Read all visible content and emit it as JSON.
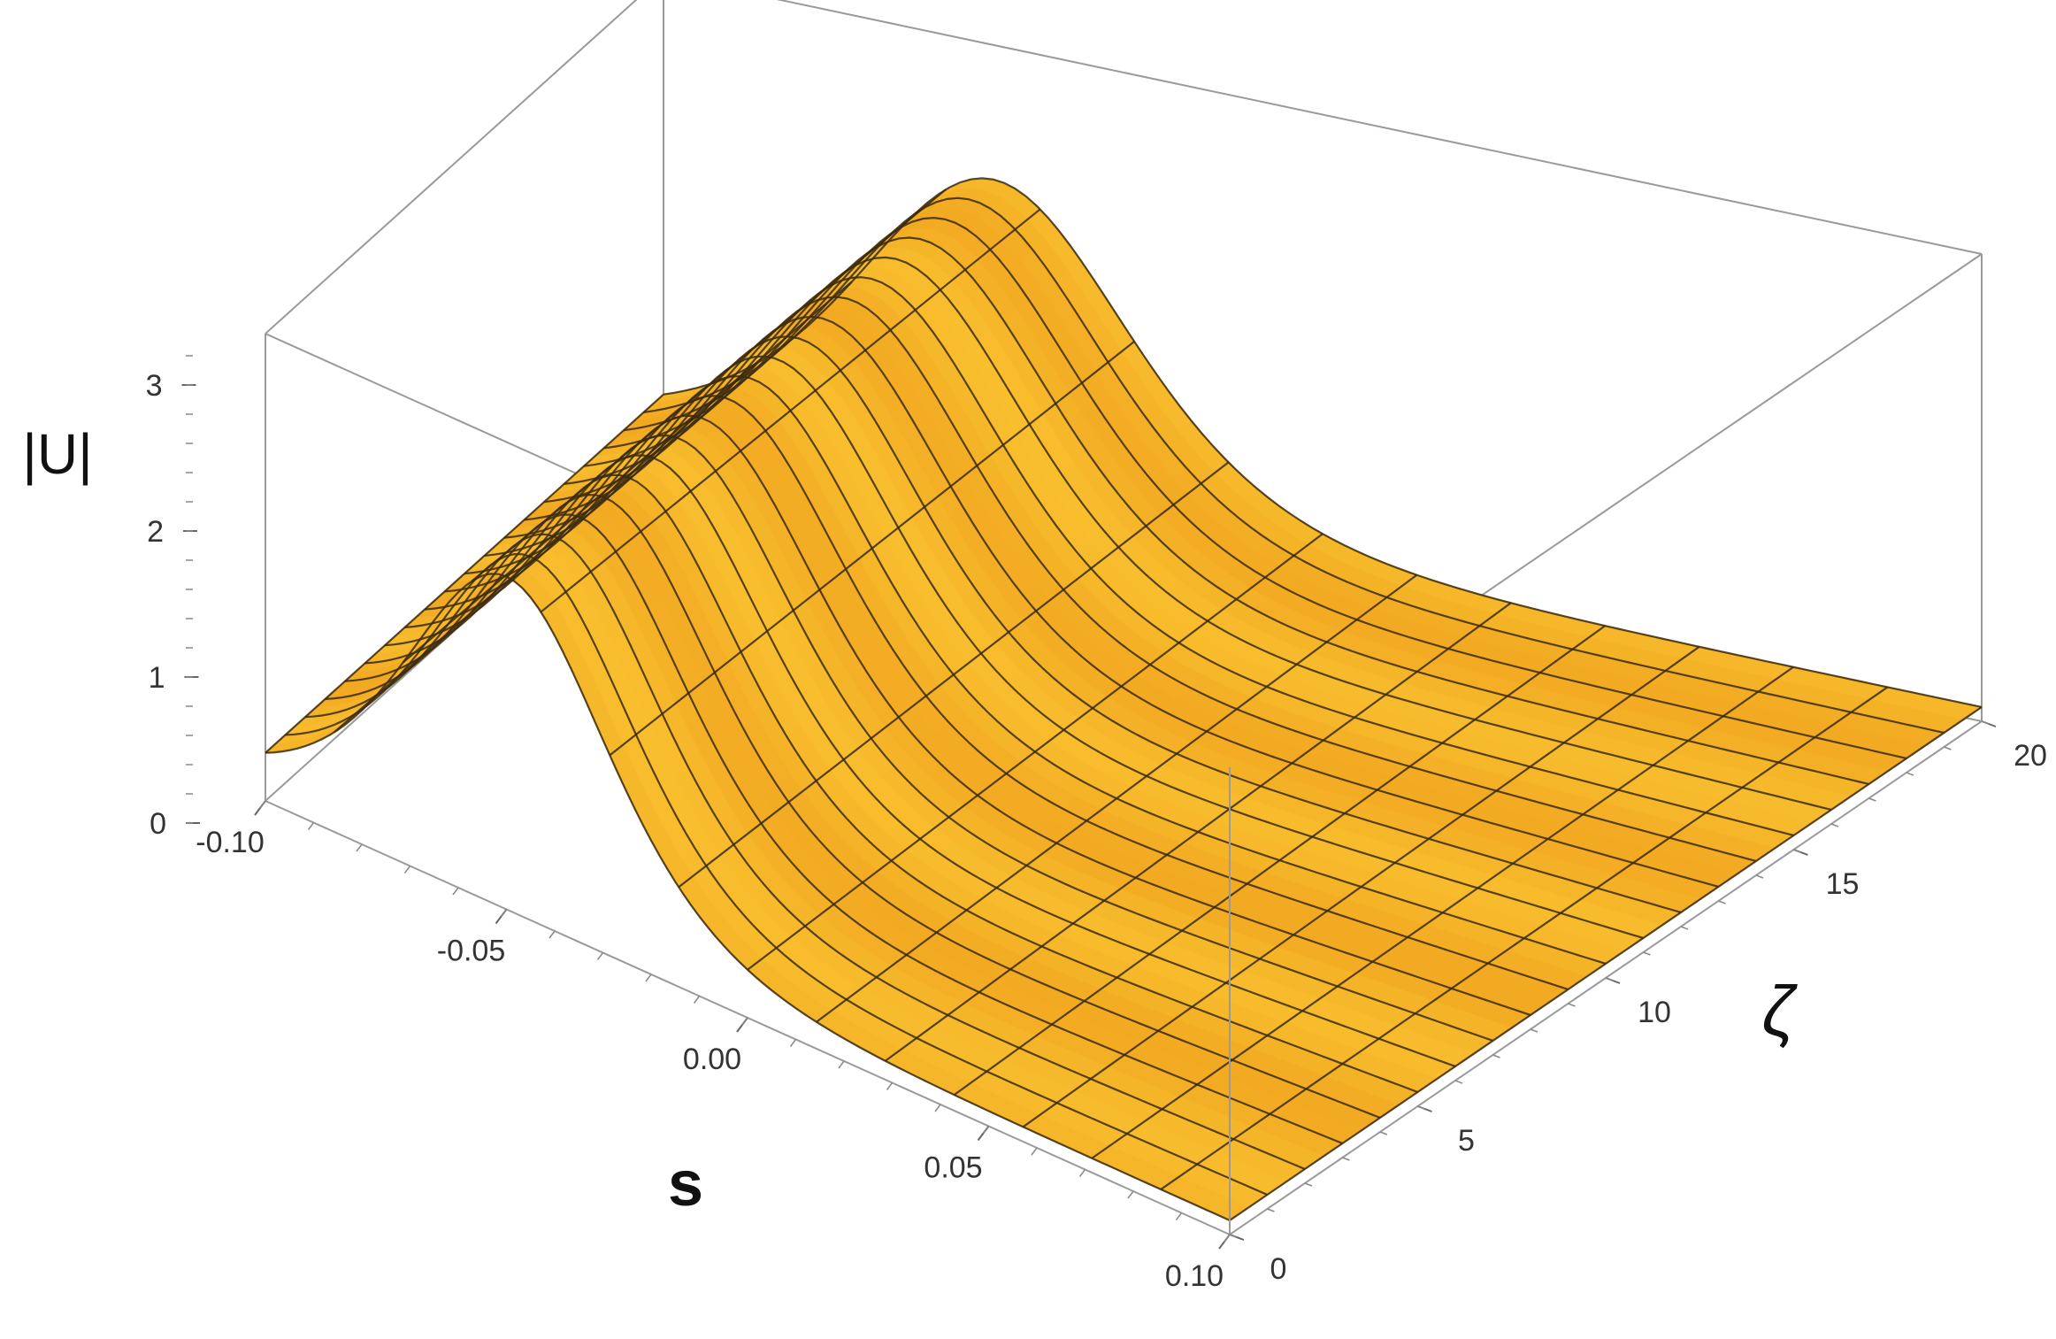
{
  "chart_data": {
    "type": "surface3d",
    "title": "",
    "z_label": "|U|",
    "s_label": "s",
    "zeta_label": "ζ",
    "s_range": [
      -0.1,
      0.1
    ],
    "zeta_range": [
      0,
      20
    ],
    "z_range": [
      0,
      3.3
    ],
    "s_ticks": [
      {
        "value": -0.1,
        "label": "-0.10"
      },
      {
        "value": -0.05,
        "label": "-0.05"
      },
      {
        "value": 0.0,
        "label": "0.00"
      },
      {
        "value": 0.05,
        "label": "0.05"
      },
      {
        "value": 0.1,
        "label": "0.10"
      }
    ],
    "zeta_ticks": [
      {
        "value": 0,
        "label": "0"
      },
      {
        "value": 5,
        "label": "5"
      },
      {
        "value": 10,
        "label": "10"
      },
      {
        "value": 15,
        "label": "15"
      },
      {
        "value": 20,
        "label": "20"
      }
    ],
    "z_ticks": [
      {
        "value": 0,
        "label": "0"
      },
      {
        "value": 1,
        "label": "1"
      },
      {
        "value": 2,
        "label": "2"
      },
      {
        "value": 3,
        "label": "3"
      }
    ],
    "surface": {
      "description_shape": "soliton ridge along ζ",
      "peak_s": -0.05,
      "peak_height": 2.35,
      "width_s": 0.028,
      "base_height": 0.1,
      "mesh_s_lines": 15,
      "mesh_zeta_lines": 21
    },
    "colors": {
      "surface_light": "#ffd43b",
      "surface_mid": "#fbb522",
      "surface_dark": "#e88a10",
      "mesh": "#3a2a10",
      "box": "#9a9a9a"
    },
    "box": true,
    "grid": false
  }
}
